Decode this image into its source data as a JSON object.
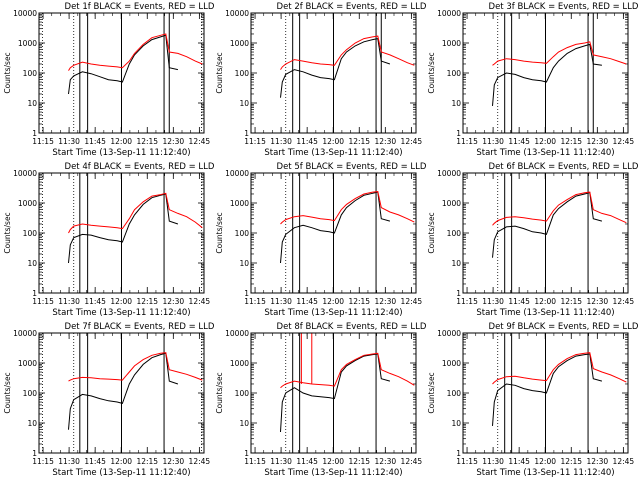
{
  "figure": {
    "xlabel": "Start Time (13-Sep-11 11:12:40)",
    "ylabel": "Counts/sec",
    "x_tick_labels": [
      "11:15",
      "11:30",
      "11:45",
      "12:00",
      "12:15",
      "12:30",
      "12:45"
    ],
    "y_tick_labels": [
      "1",
      "10",
      "100",
      "1000",
      "10000"
    ],
    "colors": {
      "events": "#000000",
      "lld": "#ff0000",
      "axes": "#000000"
    }
  },
  "chart_data": [
    {
      "type": "line",
      "title": "Det 1f BLACK = Events, RED = LLD",
      "xlabel": "Start Time (13-Sep-11 11:12:40)",
      "ylabel": "Counts/sec",
      "x_unit": "minutes since 11:12:40",
      "yscale": "log",
      "xlim": [
        0,
        95
      ],
      "ylim": [
        1,
        10000
      ],
      "x": [
        17,
        18,
        20,
        25,
        30,
        35,
        40,
        45,
        48,
        52,
        55,
        60,
        65,
        70,
        73,
        75,
        80,
        85,
        90,
        94
      ],
      "series": [
        {
          "name": "Events",
          "values": [
            20,
            60,
            80,
            110,
            95,
            75,
            60,
            55,
            50,
            200,
            400,
            800,
            1300,
            1600,
            1800,
            150,
            130,
            null,
            null,
            null
          ]
        },
        {
          "name": "LLD",
          "values": [
            120,
            150,
            180,
            230,
            200,
            180,
            170,
            160,
            150,
            250,
            450,
            900,
            1500,
            1800,
            2000,
            500,
            450,
            350,
            250,
            200
          ]
        }
      ],
      "vlines_solid": [
        23.5,
        28,
        47.5,
        72,
        75
      ],
      "vlines_dotted": [
        2,
        20,
        93.5
      ]
    },
    {
      "type": "line",
      "title": "Det 2f BLACK = Events, RED = LLD",
      "xlabel": "Start Time (13-Sep-11 11:12:40)",
      "ylabel": "Counts/sec",
      "x_unit": "minutes since 11:12:40",
      "yscale": "log",
      "xlim": [
        0,
        95
      ],
      "ylim": [
        1,
        10000
      ],
      "x": [
        17,
        18,
        20,
        25,
        30,
        35,
        40,
        45,
        48,
        52,
        55,
        60,
        65,
        70,
        73,
        75,
        80,
        85,
        90,
        94
      ],
      "series": [
        {
          "name": "Events",
          "values": [
            15,
            50,
            90,
            130,
            110,
            85,
            70,
            65,
            60,
            300,
            500,
            800,
            1100,
            1300,
            1400,
            250,
            200,
            null,
            null,
            null
          ]
        },
        {
          "name": "LLD",
          "values": [
            130,
            160,
            200,
            280,
            250,
            220,
            200,
            190,
            180,
            400,
            600,
            1000,
            1400,
            1600,
            1700,
            500,
            400,
            300,
            220,
            180
          ]
        }
      ],
      "vlines_solid": [
        24,
        28,
        47.5,
        72,
        75
      ],
      "vlines_dotted": [
        20
      ]
    },
    {
      "type": "line",
      "title": "Det 3f BLACK = Events, RED = LLD",
      "xlabel": "Start Time (13-Sep-11 11:12:40)",
      "ylabel": "Counts/sec",
      "x_unit": "minutes since 11:12:40",
      "yscale": "log",
      "xlim": [
        0,
        95
      ],
      "ylim": [
        1,
        10000
      ],
      "x": [
        17,
        18,
        20,
        25,
        30,
        35,
        40,
        45,
        48,
        52,
        55,
        60,
        65,
        70,
        73,
        75,
        80,
        85,
        90,
        94
      ],
      "series": [
        {
          "name": "Events",
          "values": [
            8,
            40,
            70,
            100,
            90,
            70,
            60,
            55,
            50,
            150,
            250,
            450,
            650,
            800,
            900,
            200,
            180,
            null,
            null,
            null
          ]
        },
        {
          "name": "LLD",
          "values": [
            180,
            200,
            250,
            300,
            280,
            250,
            230,
            220,
            210,
            350,
            500,
            700,
            900,
            1000,
            1100,
            400,
            350,
            300,
            240,
            200
          ]
        }
      ],
      "vlines_solid": [
        24,
        28,
        47.5,
        72,
        75
      ],
      "vlines_dotted": [
        20
      ]
    },
    {
      "type": "line",
      "title": "Det 4f BLACK = Events, RED = LLD",
      "xlabel": "Start Time (13-Sep-11 11:12:40)",
      "ylabel": "Counts/sec",
      "x_unit": "minutes since 11:12:40",
      "yscale": "log",
      "xlim": [
        0,
        95
      ],
      "ylim": [
        1,
        10000
      ],
      "x": [
        17,
        18,
        20,
        25,
        30,
        35,
        40,
        45,
        48,
        52,
        55,
        60,
        65,
        70,
        73,
        75,
        80,
        85,
        90,
        94
      ],
      "series": [
        {
          "name": "Events",
          "values": [
            10,
            40,
            70,
            90,
            85,
            70,
            60,
            55,
            50,
            200,
            400,
            900,
            1500,
            1800,
            2000,
            250,
            200,
            null,
            null,
            null
          ]
        },
        {
          "name": "LLD",
          "values": [
            100,
            130,
            170,
            200,
            180,
            170,
            160,
            150,
            140,
            300,
            600,
            1100,
            1700,
            1900,
            2100,
            600,
            450,
            350,
            230,
            150
          ]
        }
      ],
      "vlines_solid": [
        23.5,
        28,
        47.5,
        72
      ],
      "vlines_dotted": [
        2,
        20,
        93.5
      ]
    },
    {
      "type": "line",
      "title": "Det 5f BLACK = Events, RED = LLD",
      "xlabel": "Start Time (13-Sep-11 11:12:40)",
      "ylabel": "Counts/sec",
      "x_unit": "minutes since 11:12:40",
      "yscale": "log",
      "xlim": [
        0,
        95
      ],
      "ylim": [
        1,
        10000
      ],
      "x": [
        17,
        18,
        20,
        25,
        30,
        35,
        40,
        45,
        48,
        52,
        55,
        60,
        65,
        70,
        73,
        75,
        80,
        85,
        90,
        94
      ],
      "series": [
        {
          "name": "Events",
          "values": [
            10,
            50,
            90,
            150,
            180,
            150,
            120,
            110,
            100,
            400,
            700,
            1200,
            1800,
            2100,
            2300,
            300,
            250,
            null,
            null,
            null
          ]
        },
        {
          "name": "LLD",
          "values": [
            200,
            230,
            280,
            350,
            380,
            340,
            300,
            280,
            260,
            600,
            900,
            1400,
            2000,
            2300,
            2400,
            700,
            500,
            400,
            300,
            230
          ]
        }
      ],
      "vlines_solid": [
        24,
        28,
        47.5,
        72
      ],
      "vlines_dotted": [
        20
      ]
    },
    {
      "type": "line",
      "title": "Det 6f BLACK = Events, RED = LLD",
      "xlabel": "Start Time (13-Sep-11 11:12:40)",
      "ylabel": "Counts/sec",
      "x_unit": "minutes since 11:12:40",
      "yscale": "log",
      "xlim": [
        0,
        95
      ],
      "ylim": [
        1,
        10000
      ],
      "x": [
        17,
        18,
        20,
        25,
        30,
        35,
        40,
        45,
        48,
        52,
        55,
        60,
        65,
        70,
        73,
        75,
        80,
        85,
        90,
        94
      ],
      "series": [
        {
          "name": "Events",
          "values": [
            15,
            60,
            110,
            160,
            170,
            140,
            110,
            100,
            90,
            400,
            650,
            1100,
            1700,
            2000,
            2200,
            300,
            250,
            null,
            null,
            null
          ]
        },
        {
          "name": "LLD",
          "values": [
            180,
            210,
            260,
            330,
            350,
            320,
            290,
            270,
            250,
            550,
            850,
            1300,
            1900,
            2200,
            2300,
            600,
            450,
            380,
            280,
            220
          ]
        }
      ],
      "vlines_solid": [
        24,
        28,
        47.5,
        72
      ],
      "vlines_dotted": [
        20
      ]
    },
    {
      "type": "line",
      "title": "Det 7f BLACK = Events, RED = LLD",
      "xlabel": "Start Time (13-Sep-11 11:12:40)",
      "ylabel": "Counts/sec",
      "x_unit": "minutes since 11:12:40",
      "yscale": "log",
      "xlim": [
        0,
        95
      ],
      "ylim": [
        1,
        10000
      ],
      "x": [
        17,
        18,
        20,
        25,
        30,
        35,
        40,
        45,
        48,
        52,
        55,
        60,
        65,
        70,
        73,
        75,
        80,
        85,
        90,
        94
      ],
      "series": [
        {
          "name": "Events",
          "values": [
            6,
            30,
            60,
            90,
            80,
            65,
            55,
            50,
            45,
            200,
            400,
            900,
            1500,
            1900,
            2100,
            250,
            200,
            null,
            null,
            null
          ]
        },
        {
          "name": "LLD",
          "values": [
            250,
            270,
            300,
            330,
            320,
            300,
            290,
            280,
            270,
            500,
            800,
            1300,
            1800,
            2100,
            2200,
            600,
            500,
            420,
            330,
            270
          ]
        }
      ],
      "vlines_solid": [
        23.5,
        28,
        47.5,
        72
      ],
      "vlines_dotted": [
        2,
        20,
        93.5
      ]
    },
    {
      "type": "line",
      "title": "Det 8f BLACK = Events, RED = LLD",
      "xlabel": "Start Time (13-Sep-11 11:12:40)",
      "ylabel": "Counts/sec",
      "x_unit": "minutes since 11:12:40",
      "yscale": "log",
      "xlim": [
        0,
        95
      ],
      "ylim": [
        1,
        10000
      ],
      "x": [
        17,
        18,
        20,
        25,
        30,
        35,
        40,
        45,
        48,
        52,
        55,
        60,
        65,
        70,
        73,
        75,
        80,
        85,
        90,
        94
      ],
      "series": [
        {
          "name": "Events",
          "values": [
            5,
            50,
            100,
            150,
            100,
            80,
            75,
            70,
            65,
            500,
            800,
            1200,
            1700,
            1900,
            2000,
            300,
            250,
            null,
            null,
            null
          ]
        },
        {
          "name": "LLD",
          "values": [
            150,
            170,
            200,
            250,
            220,
            200,
            190,
            180,
            170,
            600,
            900,
            1300,
            1800,
            2000,
            2100,
            600,
            450,
            350,
            250,
            180
          ]
        }
      ],
      "spikes": [
        {
          "x": 29,
          "y": 10000
        },
        {
          "x": 35,
          "y": 10000
        }
      ],
      "vlines_solid": [
        24,
        28,
        47.5,
        72
      ],
      "vlines_dotted": [
        20
      ]
    },
    {
      "type": "line",
      "title": "Det 9f BLACK = Events, RED = LLD",
      "xlabel": "Start Time (13-Sep-11 11:12:40)",
      "ylabel": "Counts/sec",
      "x_unit": "minutes since 11:12:40",
      "yscale": "log",
      "xlim": [
        0,
        95
      ],
      "ylim": [
        1,
        10000
      ],
      "x": [
        17,
        18,
        20,
        25,
        30,
        35,
        40,
        45,
        48,
        52,
        55,
        60,
        65,
        70,
        73,
        75,
        80,
        85,
        90,
        94
      ],
      "series": [
        {
          "name": "Events",
          "values": [
            8,
            50,
            120,
            200,
            180,
            140,
            120,
            110,
            100,
            450,
            750,
            1200,
            1700,
            1900,
            2000,
            300,
            250,
            null,
            null,
            null
          ]
        },
        {
          "name": "LLD",
          "values": [
            200,
            230,
            280,
            350,
            360,
            320,
            290,
            270,
            260,
            600,
            900,
            1400,
            1900,
            2100,
            2200,
            650,
            500,
            400,
            300,
            230
          ]
        }
      ],
      "vlines_solid": [
        24,
        28,
        47.5,
        72
      ],
      "vlines_dotted": [
        20
      ]
    }
  ]
}
